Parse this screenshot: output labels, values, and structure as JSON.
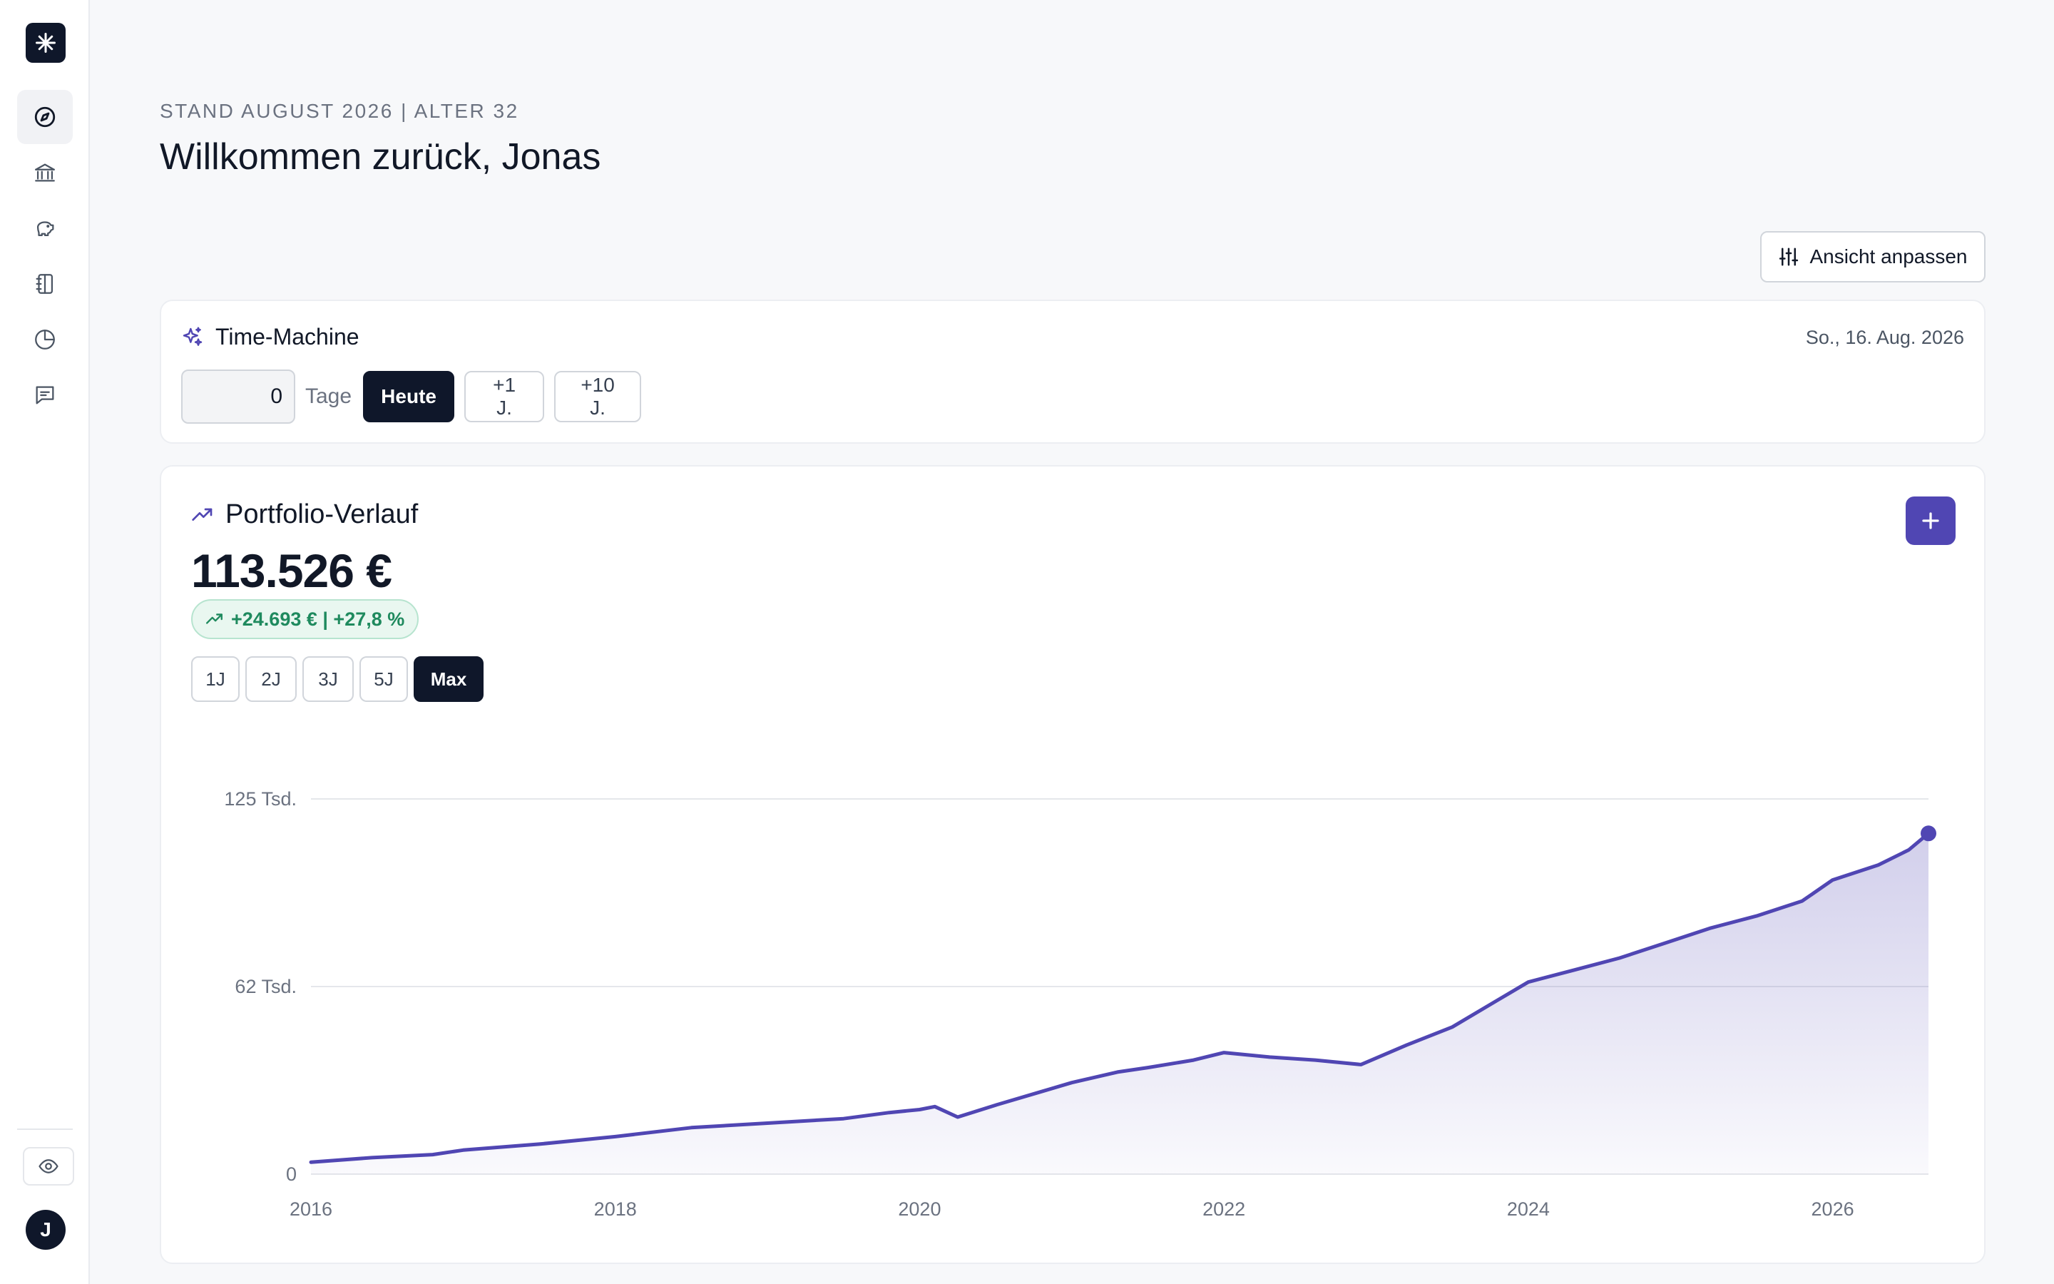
{
  "sidebar": {
    "logo_icon": "asterisk-icon",
    "items": [
      {
        "name": "compass",
        "icon": "compass-icon",
        "active": true
      },
      {
        "name": "bank",
        "icon": "bank-icon",
        "active": false
      },
      {
        "name": "savings",
        "icon": "piggy-bank-icon",
        "active": false
      },
      {
        "name": "notebook",
        "icon": "notebook-icon",
        "active": false
      },
      {
        "name": "reports",
        "icon": "pie-chart-icon",
        "active": false
      },
      {
        "name": "messages",
        "icon": "message-icon",
        "active": false
      }
    ],
    "privacy_icon": "eye-icon",
    "avatar_initial": "J"
  },
  "header": {
    "eyebrow": "STAND AUGUST 2026 | ALTER 32",
    "title": "Willkommen zurück, Jonas",
    "customize_label": "Ansicht anpassen"
  },
  "time_machine": {
    "title": "Time-Machine",
    "date": "So., 16. Aug. 2026",
    "days_value": "0",
    "days_label": "Tage",
    "buttons": [
      "Heute",
      "+1 J.",
      "+10 J."
    ]
  },
  "portfolio": {
    "title": "Portfolio-Verlauf",
    "value": "113.526 €",
    "change": "+24.693 € | +27,8 %",
    "ranges": [
      "1J",
      "2J",
      "3J",
      "5J",
      "Max"
    ],
    "active_range": "Max"
  },
  "colors": {
    "accent": "#5046b3",
    "positive": "#1f8a5e",
    "dark": "#0f172a"
  },
  "chart_data": {
    "type": "area",
    "title": "",
    "xlabel": "",
    "ylabel": "",
    "y_ticks": [
      "0",
      "62 Tsd.",
      "125 Tsd."
    ],
    "x_ticks": [
      "2016",
      "2018",
      "2020",
      "2022",
      "2024",
      "2026"
    ],
    "ylim": [
      0,
      125000
    ],
    "grid": true,
    "series": [
      {
        "values_x": [
          2016.0,
          2016.4,
          2016.8,
          2017.0,
          2017.5,
          2018.0,
          2018.5,
          2019.0,
          2019.5,
          2019.8,
          2020.0,
          2020.1,
          2020.25,
          2020.5,
          2020.8,
          2021.0,
          2021.3,
          2021.5,
          2021.8,
          2022.0,
          2022.3,
          2022.6,
          2022.9,
          2023.2,
          2023.5,
          2023.8,
          2024.0,
          2024.3,
          2024.6,
          2024.9,
          2025.2,
          2025.5,
          2025.8,
          2026.0,
          2026.3,
          2026.5,
          2026.63
        ],
        "values_y": [
          4000,
          5500,
          6500,
          8000,
          10000,
          12500,
          15500,
          17000,
          18500,
          20500,
          21500,
          22500,
          19000,
          23000,
          27500,
          30500,
          34000,
          35500,
          38000,
          40500,
          39000,
          38000,
          36500,
          43000,
          49000,
          58000,
          64000,
          68000,
          72000,
          77000,
          82000,
          86000,
          91000,
          98000,
          103000,
          108000,
          113526
        ]
      }
    ]
  }
}
